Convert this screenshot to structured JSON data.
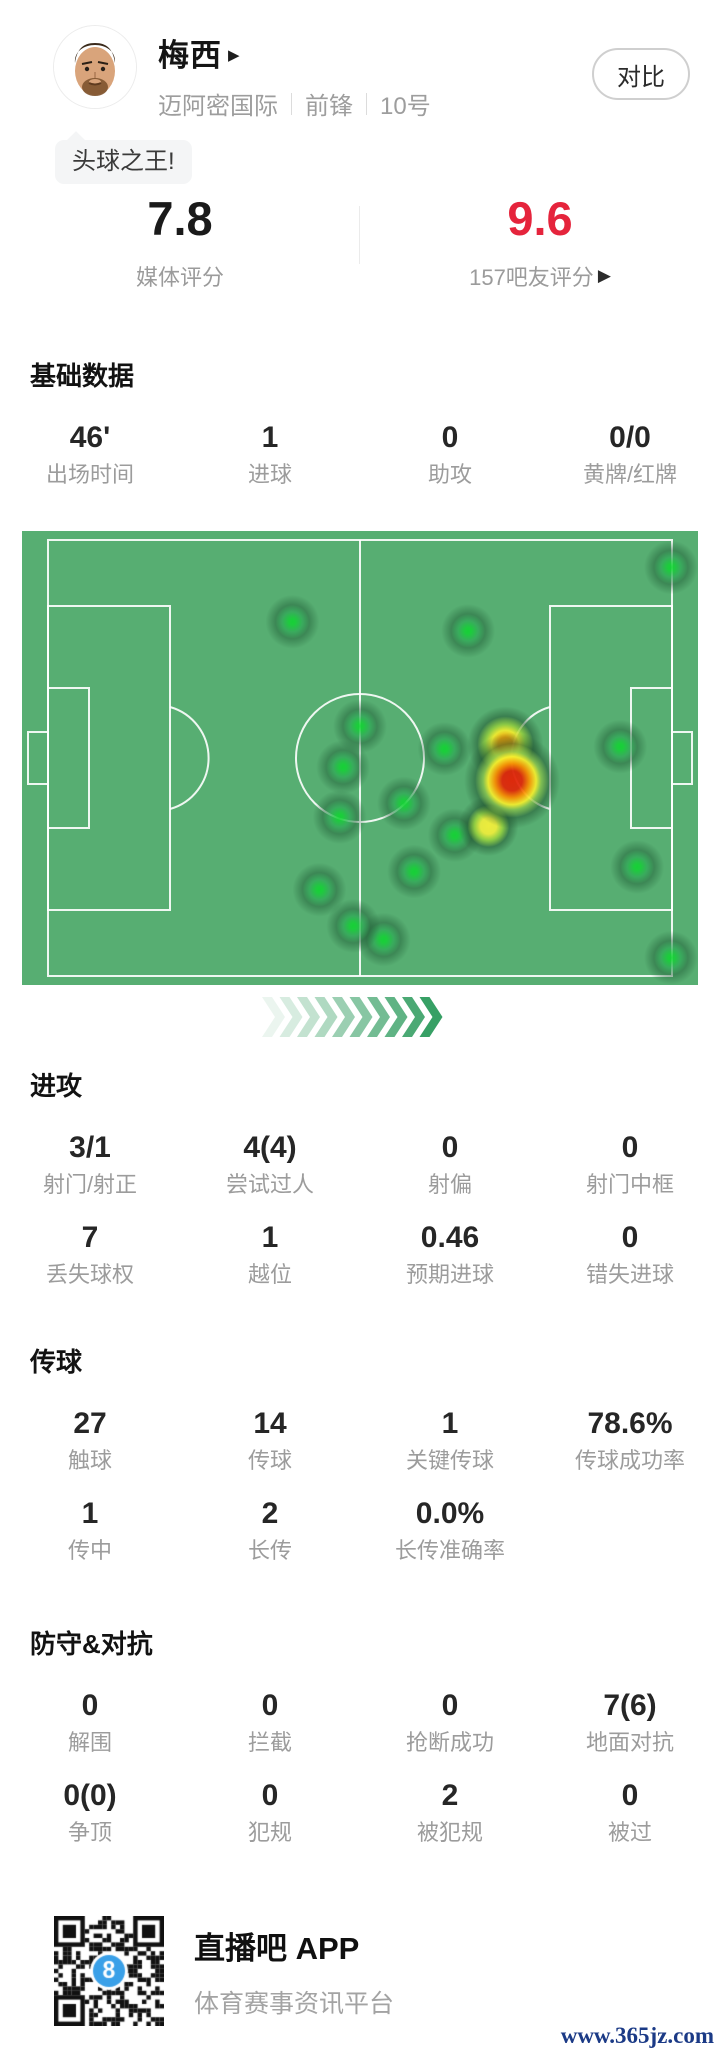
{
  "header": {
    "player_name": "梅西",
    "team": "迈阿密国际",
    "position": "前锋",
    "shirt_number": "10号",
    "tag_bubble": "头球之王!",
    "compare_button": "对比"
  },
  "icons": {
    "name_arrow": "▶",
    "fans_arrow": "▶"
  },
  "ratings": {
    "media": {
      "value": "7.8",
      "label": "媒体评分"
    },
    "fans": {
      "value": "9.6",
      "label": "157吧友评分",
      "value_color": "#e5243c"
    }
  },
  "sections": [
    {
      "id": "basic",
      "title": "基础数据",
      "stats": [
        {
          "value": "46'",
          "label": "出场时间"
        },
        {
          "value": "1",
          "label": "进球"
        },
        {
          "value": "0",
          "label": "助攻"
        },
        {
          "value": "0/0",
          "label": "黄牌/红牌"
        }
      ]
    },
    {
      "id": "attack",
      "title": "进攻",
      "stats": [
        {
          "value": "3/1",
          "label": "射门/射正"
        },
        {
          "value": "4(4)",
          "label": "尝试过人"
        },
        {
          "value": "0",
          "label": "射偏"
        },
        {
          "value": "0",
          "label": "射门中框"
        },
        {
          "value": "7",
          "label": "丢失球权"
        },
        {
          "value": "1",
          "label": "越位"
        },
        {
          "value": "0.46",
          "label": "预期进球"
        },
        {
          "value": "0",
          "label": "错失进球"
        }
      ]
    },
    {
      "id": "passing",
      "title": "传球",
      "stats": [
        {
          "value": "27",
          "label": "触球"
        },
        {
          "value": "14",
          "label": "传球"
        },
        {
          "value": "1",
          "label": "关键传球"
        },
        {
          "value": "78.6%",
          "label": "传球成功率"
        },
        {
          "value": "1",
          "label": "传中"
        },
        {
          "value": "2",
          "label": "长传"
        },
        {
          "value": "0.0%",
          "label": "长传准确率"
        }
      ]
    },
    {
      "id": "defense",
      "title": "防守&对抗",
      "stats": [
        {
          "value": "0",
          "label": "解围"
        },
        {
          "value": "0",
          "label": "拦截"
        },
        {
          "value": "0",
          "label": "抢断成功"
        },
        {
          "value": "7(6)",
          "label": "地面对抗"
        },
        {
          "value": "0(0)",
          "label": "争顶"
        },
        {
          "value": "0",
          "label": "犯规"
        },
        {
          "value": "2",
          "label": "被犯规"
        },
        {
          "value": "0",
          "label": "被过"
        }
      ]
    }
  ],
  "heatmap": {
    "pitch_color": "#57ae72",
    "line_color": "rgba(255,255,255,0.9)",
    "points": [
      {
        "x": 96,
        "y": 8,
        "level": "green"
      },
      {
        "x": 40,
        "y": 20,
        "level": "green"
      },
      {
        "x": 66,
        "y": 22,
        "level": "green"
      },
      {
        "x": 50,
        "y": 43,
        "level": "green"
      },
      {
        "x": 62.5,
        "y": 48,
        "level": "green"
      },
      {
        "x": 88.5,
        "y": 47.5,
        "level": "green"
      },
      {
        "x": 47.5,
        "y": 52,
        "level": "green"
      },
      {
        "x": 56.5,
        "y": 60,
        "level": "green"
      },
      {
        "x": 47,
        "y": 63,
        "level": "green"
      },
      {
        "x": 64,
        "y": 67,
        "level": "green"
      },
      {
        "x": 58,
        "y": 75,
        "level": "green"
      },
      {
        "x": 91,
        "y": 74,
        "level": "green"
      },
      {
        "x": 44,
        "y": 79,
        "level": "green"
      },
      {
        "x": 49,
        "y": 87,
        "level": "green"
      },
      {
        "x": 53.5,
        "y": 90,
        "level": "green"
      },
      {
        "x": 96,
        "y": 94,
        "level": "green"
      },
      {
        "x": 71.5,
        "y": 47,
        "level": "orange"
      },
      {
        "x": 72.5,
        "y": 55,
        "level": "red"
      },
      {
        "x": 69,
        "y": 65,
        "level": "yellow"
      }
    ]
  },
  "chevrons": {
    "count": 10,
    "color": "#37a065"
  },
  "footer": {
    "app_name": "直播吧 APP",
    "app_desc": "体育赛事资讯平台",
    "qr_badge": "8"
  },
  "watermark": "www.365jz.com"
}
